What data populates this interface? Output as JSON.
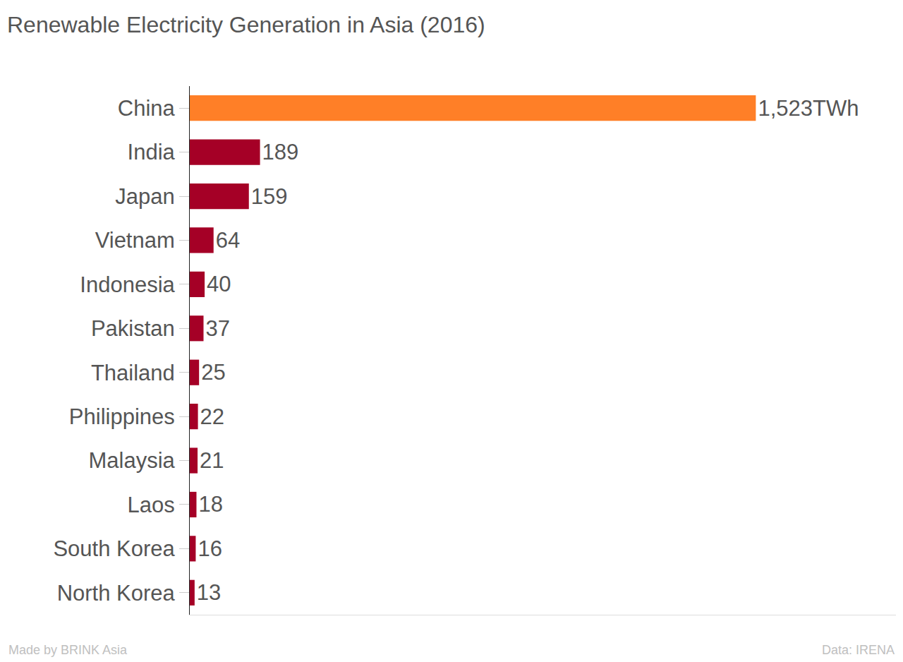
{
  "chart_data": {
    "type": "bar",
    "title": "Renewable Electricity Generation in Asia (2016)",
    "orientation": "horizontal",
    "categories": [
      "China",
      "India",
      "Japan",
      "Vietnam",
      "Indonesia",
      "Pakistan",
      "Thailand",
      "Philippines",
      "Malaysia",
      "Laos",
      "South Korea",
      "North Korea"
    ],
    "values": [
      1523,
      189,
      159,
      64,
      40,
      37,
      25,
      22,
      21,
      18,
      16,
      13
    ],
    "value_labels": [
      "1,523TWh",
      "189",
      "159",
      "64",
      "40",
      "37",
      "25",
      "22",
      "21",
      "18",
      "16",
      "13"
    ],
    "colors": [
      "#ff7f27",
      "#a50026",
      "#a50026",
      "#a50026",
      "#a50026",
      "#a50026",
      "#a50026",
      "#a50026",
      "#a50026",
      "#a50026",
      "#a50026",
      "#a50026"
    ],
    "xlim": [
      0,
      1900
    ],
    "data_labels": true,
    "tick_labels": "y",
    "grid": false,
    "annotations": [
      "Made by BRINK Asia",
      "Data: IRENA"
    ]
  }
}
